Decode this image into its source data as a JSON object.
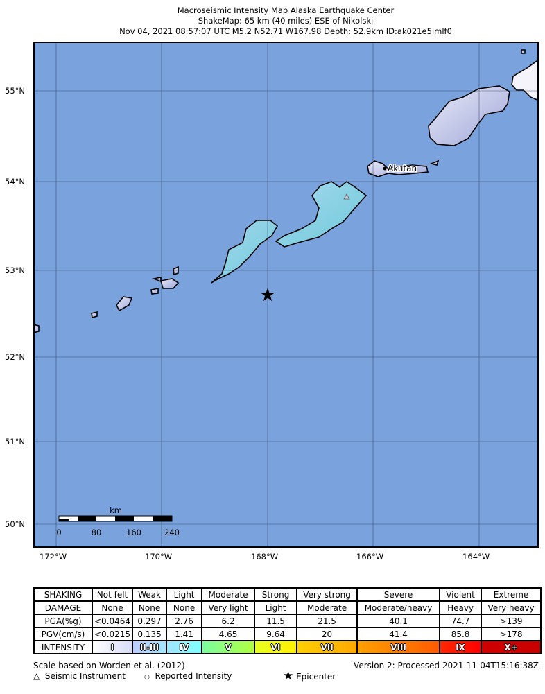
{
  "header": {
    "line1": "Macroseismic Intensity Map Alaska Earthquake Center",
    "line2": "ShakeMap: 65 km (40 miles) ESE of Nikolski",
    "line3": "Nov 04, 2021 08:57:07 UTC M5.2 N52.71 W167.98 Depth: 52.9km ID:ak021e5imlf0"
  },
  "map": {
    "ocean_color": "#7aa2dc",
    "lat_labels": [
      "55°N",
      "54°N",
      "53°N",
      "52°N",
      "51°N",
      "50°N"
    ],
    "lon_labels": [
      "172°W",
      "170°W",
      "168°W",
      "166°W",
      "164°W"
    ],
    "place_label": "Akutan",
    "epicenter": {
      "lat": 52.71,
      "lon": -167.98
    },
    "scale_bar": {
      "unit": "km",
      "ticks": [
        "0",
        "80",
        "160",
        "240"
      ]
    }
  },
  "legend_table": {
    "rows": [
      {
        "label": "SHAKING",
        "cells": [
          "Not felt",
          "Weak",
          "Light",
          "Moderate",
          "Strong",
          "Very strong",
          "Severe",
          "Violent",
          "Extreme"
        ]
      },
      {
        "label": "DAMAGE",
        "cells": [
          "None",
          "None",
          "None",
          "Very light",
          "Light",
          "Moderate",
          "Moderate/heavy",
          "Heavy",
          "Very heavy"
        ]
      },
      {
        "label": "PGA(%g)",
        "cells": [
          "<0.0464",
          "0.297",
          "2.76",
          "6.2",
          "11.5",
          "21.5",
          "40.1",
          "74.7",
          ">139"
        ]
      },
      {
        "label": "PGV(cm/s)",
        "cells": [
          "<0.0215",
          "0.135",
          "1.41",
          "4.65",
          "9.64",
          "20",
          "41.4",
          "85.8",
          ">178"
        ]
      }
    ],
    "intensity": {
      "label": "INTENSITY",
      "cells": [
        "I",
        "II-III",
        "IV",
        "V",
        "VI",
        "VII",
        "VIII",
        "IX",
        "X+"
      ],
      "colors": [
        [
          "#ffffff",
          "#d8dcf8"
        ],
        [
          "#bfccff",
          "#a0e6ff"
        ],
        [
          "#a0e6ff",
          "#80ffff"
        ],
        [
          "#7affa0",
          "#b0ff40"
        ],
        [
          "#e8ff20",
          "#fff000"
        ],
        [
          "#ffd000",
          "#ffa800"
        ],
        [
          "#ffa000",
          "#ff5a00"
        ],
        [
          "#ff2800",
          "#ff0000"
        ],
        [
          "#d00000",
          "#c80000"
        ]
      ]
    }
  },
  "footer": {
    "scale_note": "Scale based on Worden et al. (2012)",
    "version": "Version 2: Processed 2021-11-04T15:16:38Z",
    "seismic_instrument": "Seismic Instrument",
    "reported_intensity": "Reported Intensity",
    "epicenter": "Epicenter"
  }
}
